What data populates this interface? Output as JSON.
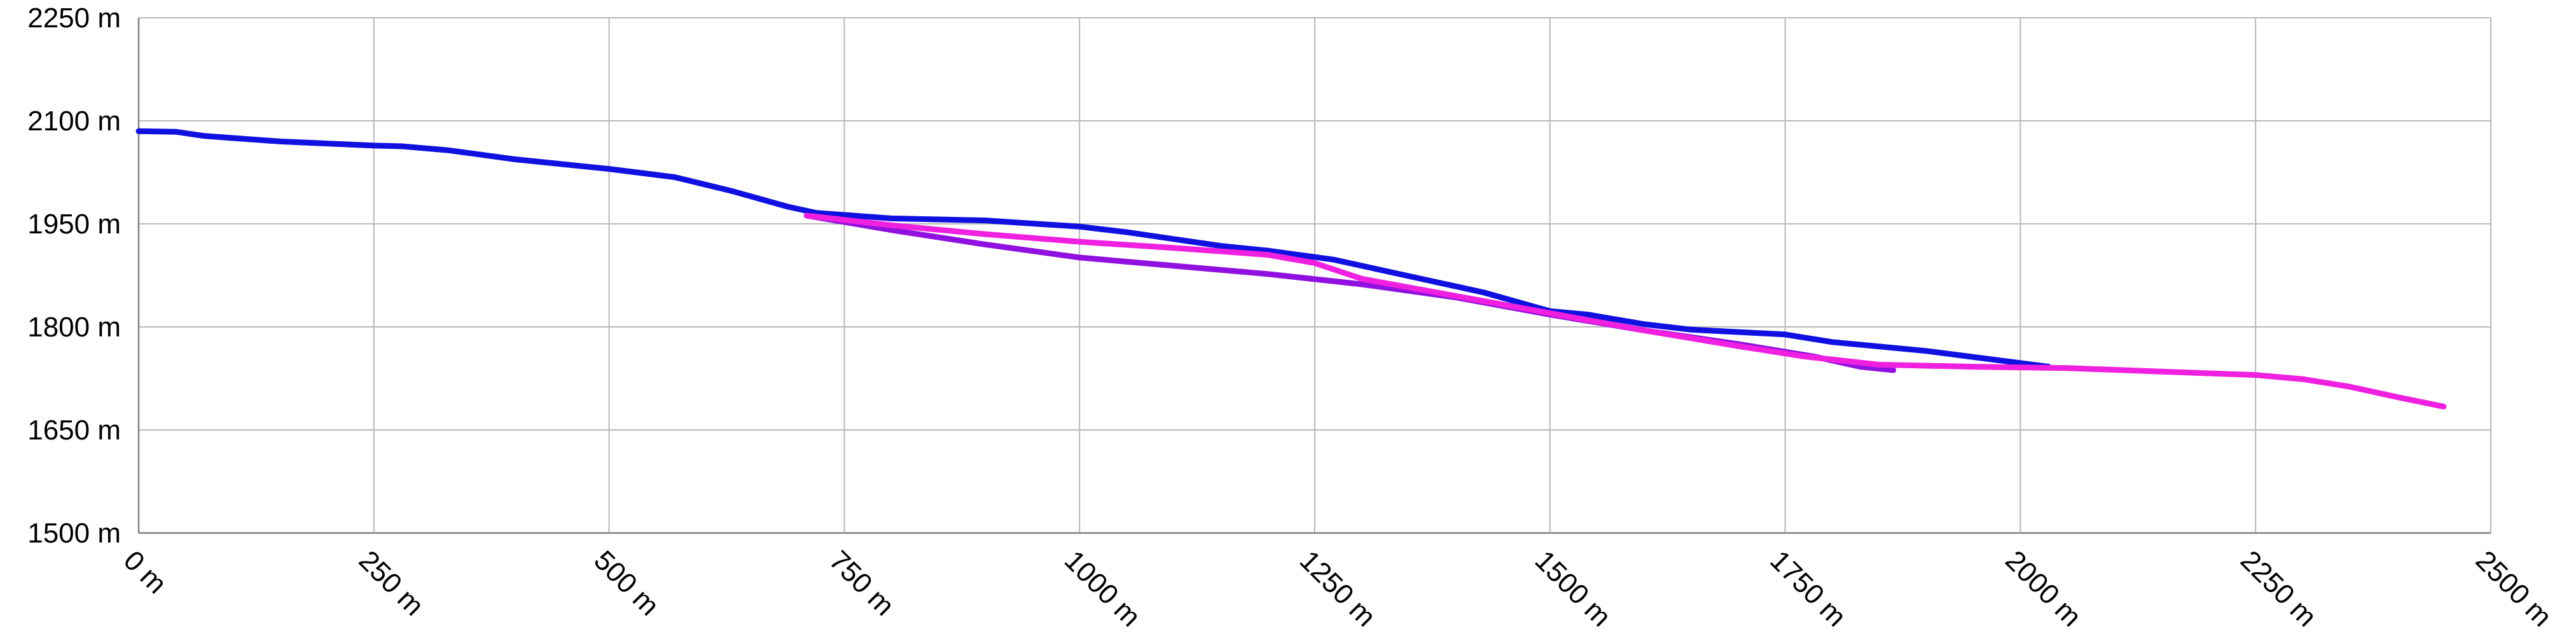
{
  "chart_data": {
    "type": "line",
    "title": "",
    "xlabel": "",
    "ylabel": "",
    "xlim": [
      0,
      2500
    ],
    "ylim": [
      1500,
      2250
    ],
    "x_ticks": [
      0,
      250,
      500,
      750,
      1000,
      1250,
      1500,
      1750,
      2000,
      2250,
      2500
    ],
    "y_ticks": [
      1500,
      1650,
      1800,
      1950,
      2100,
      2250
    ],
    "x_tick_labels": [
      "0 m",
      "250 m",
      "500 m",
      "750 m",
      "1000 m",
      "1250 m",
      "1500 m",
      "1750 m",
      "2000 m",
      "2250 m",
      "2500 m"
    ],
    "y_tick_labels": [
      "1500 m",
      "1650 m",
      "1800 m",
      "1950 m",
      "2100 m",
      "2250 m"
    ],
    "grid": true,
    "legend": "none",
    "series": [
      {
        "color": "#1010e0",
        "points": [
          [
            0,
            2085
          ],
          [
            40,
            2084
          ],
          [
            70,
            2078
          ],
          [
            150,
            2070
          ],
          [
            250,
            2064
          ],
          [
            280,
            2063
          ],
          [
            330,
            2057
          ],
          [
            400,
            2044
          ],
          [
            500,
            2030
          ],
          [
            570,
            2018
          ],
          [
            630,
            1998
          ],
          [
            690,
            1975
          ],
          [
            720,
            1966
          ],
          [
            800,
            1958
          ],
          [
            900,
            1955
          ],
          [
            1000,
            1946
          ],
          [
            1050,
            1938
          ],
          [
            1100,
            1928
          ],
          [
            1150,
            1918
          ],
          [
            1200,
            1911
          ],
          [
            1270,
            1898
          ],
          [
            1350,
            1874
          ],
          [
            1430,
            1850
          ],
          [
            1500,
            1823
          ],
          [
            1540,
            1818
          ],
          [
            1600,
            1804
          ],
          [
            1650,
            1796
          ],
          [
            1750,
            1789
          ],
          [
            1800,
            1778
          ],
          [
            1900,
            1765
          ],
          [
            2030,
            1742
          ]
        ]
      },
      {
        "color": "#9010e0",
        "points": [
          [
            710,
            1962
          ],
          [
            800,
            1941
          ],
          [
            900,
            1920
          ],
          [
            1000,
            1901
          ],
          [
            1100,
            1889
          ],
          [
            1200,
            1877
          ],
          [
            1300,
            1862
          ],
          [
            1400,
            1843
          ],
          [
            1500,
            1818
          ],
          [
            1600,
            1795
          ],
          [
            1700,
            1775
          ],
          [
            1780,
            1757
          ],
          [
            1830,
            1742
          ],
          [
            1865,
            1737
          ]
        ]
      },
      {
        "color": "#f020e0",
        "points": [
          [
            710,
            1962
          ],
          [
            800,
            1948
          ],
          [
            900,
            1935
          ],
          [
            1000,
            1924
          ],
          [
            1100,
            1915
          ],
          [
            1200,
            1905
          ],
          [
            1250,
            1893
          ],
          [
            1300,
            1870
          ],
          [
            1400,
            1845
          ],
          [
            1500,
            1820
          ],
          [
            1600,
            1795
          ],
          [
            1700,
            1772
          ],
          [
            1770,
            1757
          ],
          [
            1850,
            1745
          ],
          [
            1950,
            1742
          ],
          [
            2050,
            1740
          ],
          [
            2150,
            1735
          ],
          [
            2250,
            1730
          ],
          [
            2300,
            1724
          ],
          [
            2350,
            1713
          ],
          [
            2400,
            1698
          ],
          [
            2450,
            1684
          ]
        ]
      }
    ]
  }
}
